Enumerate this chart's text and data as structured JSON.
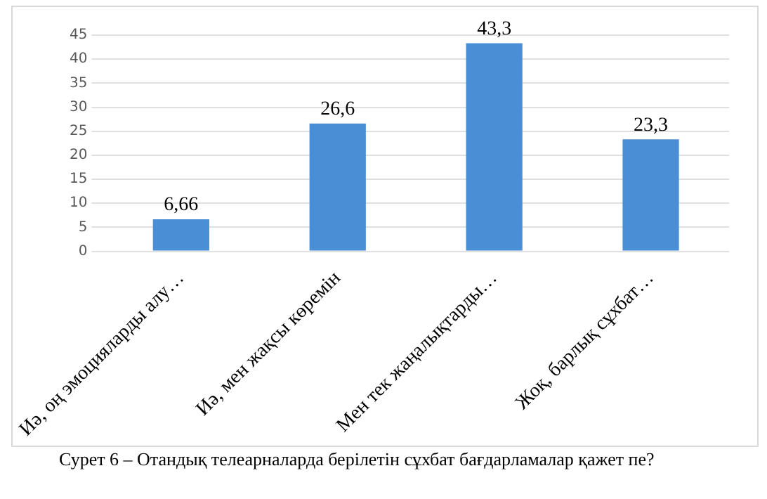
{
  "chart_data": {
    "type": "bar",
    "categories": [
      "Иә, оң эмоцияларды алу…",
      "Иә, мен жақсы көремін",
      "Мен тек жаңалықтарды…",
      "Жоқ, барлық сұхбат…"
    ],
    "values": [
      6.66,
      26.6,
      43.3,
      23.3
    ],
    "color": "#4a8fd6",
    "ylim": [
      0,
      45
    ],
    "yticks": [
      0,
      5,
      10,
      15,
      20,
      25,
      30,
      35,
      40,
      45
    ],
    "grid": "y",
    "value_labels": [
      "6,66",
      "26,6",
      "43,3",
      "23,3"
    ],
    "annotations": [
      "Сурет 6 – Отандық телеарналарда берілетін сұхбат бағдарламалар қажет пе?"
    ]
  }
}
